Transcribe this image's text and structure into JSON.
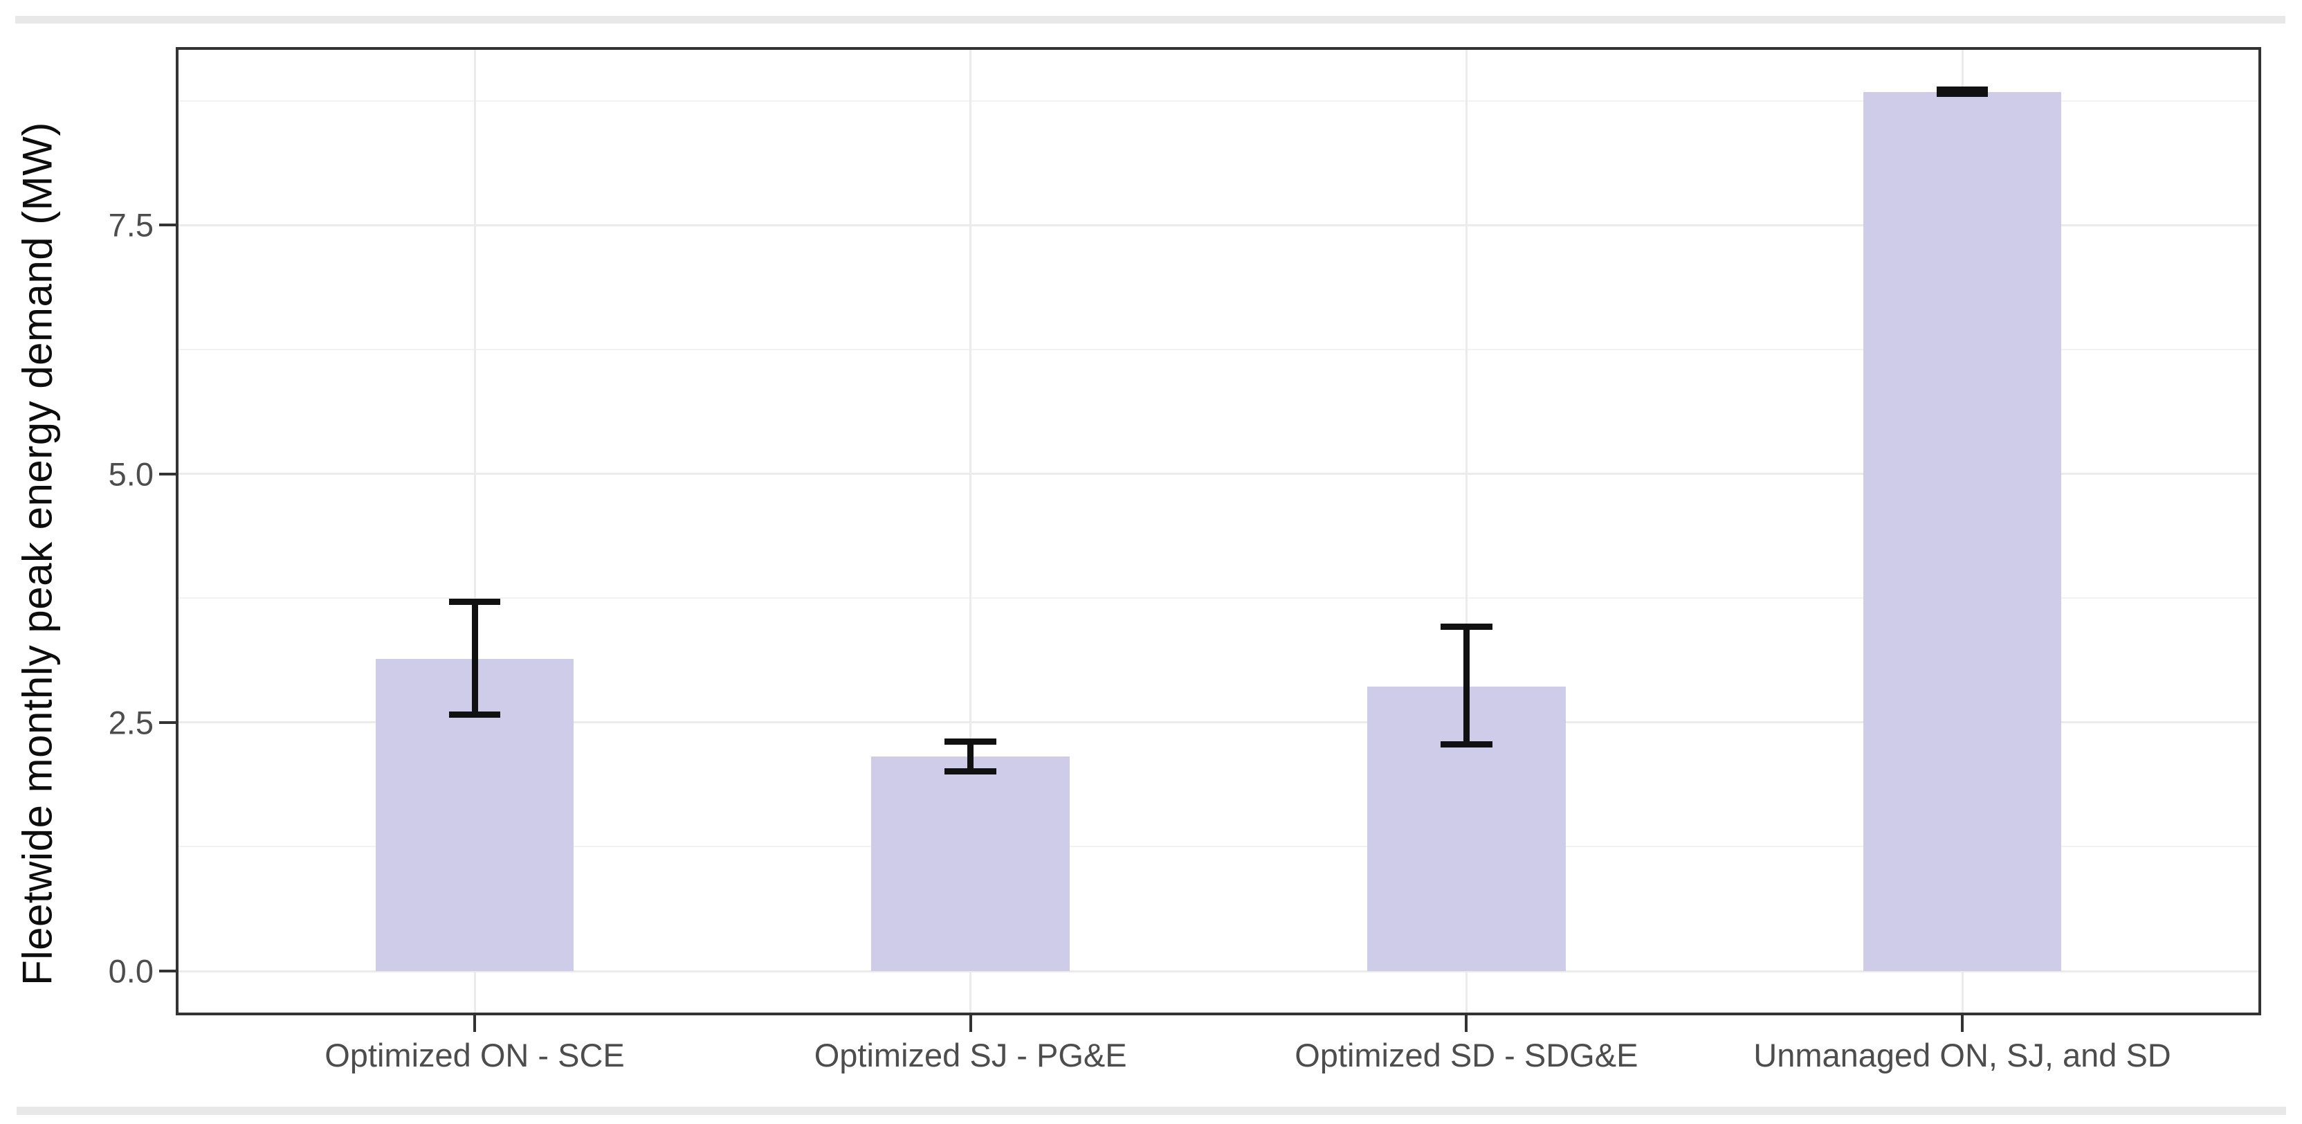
{
  "page": {
    "background": "#ffffff",
    "edge_strip_color": "#e8e8e8"
  },
  "chart_data": {
    "type": "bar",
    "title": "",
    "xlabel": "",
    "ylabel": "Fleetwide monthly peak energy demand (MW)",
    "categories": [
      "Optimized ON - SCE",
      "Optimized SJ - PG&E",
      "Optimized SD - SDG&E",
      "Unmanaged ON, SJ, and SD"
    ],
    "values": [
      3.14,
      2.16,
      2.86,
      8.84
    ],
    "error_bars": {
      "ymin": [
        2.58,
        2.01,
        2.28,
        8.82
      ],
      "ymax": [
        3.71,
        2.31,
        3.46,
        8.86
      ]
    },
    "y_ticks": {
      "values": [
        0.0,
        2.5,
        5.0,
        7.5
      ],
      "labels": [
        "0.0",
        "2.5",
        "5.0",
        "7.5"
      ]
    },
    "y_minor_ticks": [
      1.25,
      3.75,
      6.25,
      8.75
    ],
    "ylim": [
      -0.431,
      9.276
    ],
    "grid": "major+minor horizontal, major vertical at categories",
    "legend": "none",
    "colors": {
      "bar_fill": "#cfccea",
      "error_bar": "#111111",
      "grid_major": "#ebebeb",
      "grid_minor": "#f2f2f2",
      "panel_border": "#333333",
      "axis_text": "#4d4d4d",
      "axis_title": "#0d0d0d"
    }
  }
}
